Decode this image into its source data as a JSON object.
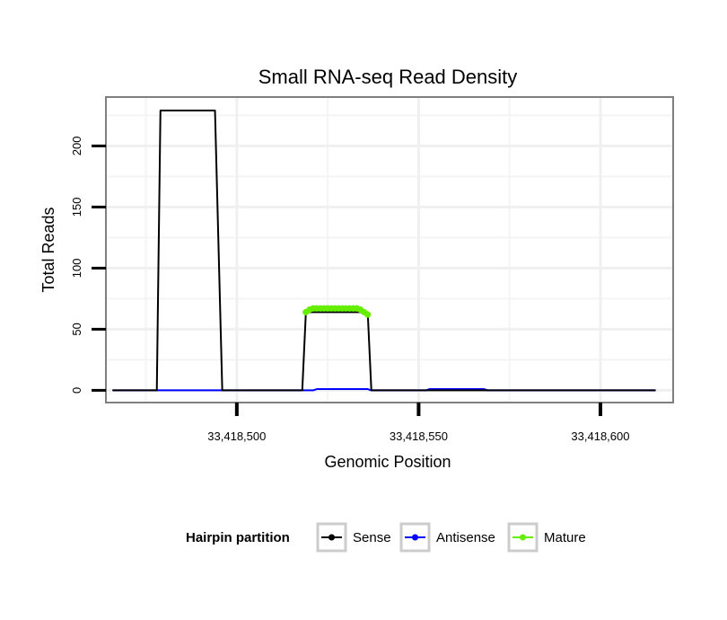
{
  "chart_data": {
    "type": "line",
    "title": "Small RNA-seq Read Density",
    "xlabel": "Genomic Position",
    "ylabel": "Total Reads",
    "xlim": [
      33418464,
      33418620
    ],
    "ylim": [
      -10,
      240
    ],
    "x_ticks": [
      33418500,
      33418550,
      33418600
    ],
    "x_tick_labels": [
      "33,418,500",
      "33,418,550",
      "33,418,600"
    ],
    "y_ticks": [
      0,
      50,
      100,
      150,
      200
    ],
    "y_tick_labels": [
      "0",
      "50",
      "100",
      "150",
      "200"
    ],
    "grid": true,
    "legend": {
      "title": "Hairpin partition",
      "position": "bottom",
      "entries": [
        {
          "label": "Sense",
          "color": "#000000"
        },
        {
          "label": "Antisense",
          "color": "#0000ff"
        },
        {
          "label": "Mature",
          "color": "#66ee00"
        }
      ]
    },
    "series": [
      {
        "name": "Sense",
        "color": "#000000",
        "x": [
          33418466,
          33418478,
          33418479,
          33418494,
          33418496,
          33418518,
          33418519,
          33418536,
          33418537,
          33418615
        ],
        "y": [
          0,
          0,
          229,
          229,
          0,
          0,
          64,
          64,
          0,
          0
        ]
      },
      {
        "name": "Antisense",
        "color": "#0000ff",
        "x": [
          33418466,
          33418521,
          33418522,
          33418536,
          33418537,
          33418552,
          33418553,
          33418568,
          33418569,
          33418615
        ],
        "y": [
          0,
          0,
          1,
          1,
          0,
          0,
          1,
          1,
          0,
          0
        ]
      },
      {
        "name": "Mature",
        "color": "#66ee00",
        "x": [
          33418519,
          33418520,
          33418521,
          33418522,
          33418523,
          33418524,
          33418525,
          33418526,
          33418527,
          33418528,
          33418529,
          33418530,
          33418531,
          33418532,
          33418533,
          33418534,
          33418535,
          33418536
        ],
        "y": [
          64,
          66,
          67,
          67,
          67,
          67,
          67,
          67,
          67,
          67,
          67,
          67,
          67,
          67,
          67,
          66,
          64,
          62
        ]
      }
    ]
  }
}
